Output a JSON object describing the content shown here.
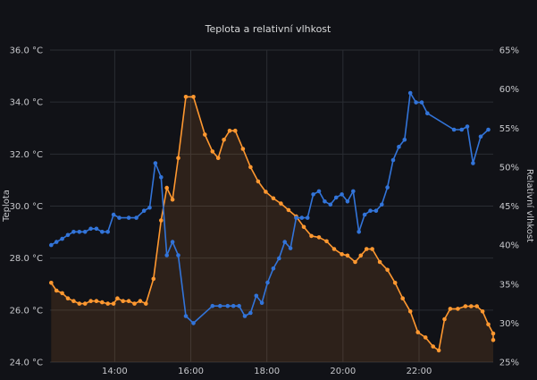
{
  "chart_data": {
    "type": "line",
    "title": "Teplota a relativní vlhkost",
    "x_tick_labels": [
      "14:00",
      "16:00",
      "18:00",
      "20:00",
      "22:00"
    ],
    "x_tick_hours": [
      14,
      16,
      18,
      20,
      22
    ],
    "xlim_hours": [
      12.3,
      23.7
    ],
    "y_left": {
      "label": "Teplota",
      "unit": "°C",
      "ylim": [
        24,
        36
      ],
      "ticks": [
        "24.0 °C",
        "26.0 °C",
        "28.0 °C",
        "30.0 °C",
        "32.0 °C",
        "34.0 °C",
        "36.0 °C"
      ],
      "tick_values": [
        24,
        26,
        28,
        30,
        32,
        34,
        36
      ]
    },
    "y_right": {
      "label": "Relativní vlhkost",
      "unit": "%",
      "ylim": [
        25,
        65
      ],
      "ticks": [
        "25%",
        "30%",
        "35%",
        "40%",
        "45%",
        "50%",
        "55%",
        "60%",
        "65%"
      ],
      "tick_values": [
        25,
        30,
        35,
        40,
        45,
        50,
        55,
        60,
        65
      ]
    },
    "grid": true,
    "series": [
      {
        "axis": "left",
        "color": "#ff9830",
        "fill": true,
        "points": [
          [
            12.33,
            27.05
          ],
          [
            12.47,
            26.75
          ],
          [
            12.62,
            26.65
          ],
          [
            12.77,
            26.45
          ],
          [
            12.92,
            26.35
          ],
          [
            13.07,
            26.25
          ],
          [
            13.22,
            26.25
          ],
          [
            13.37,
            26.35
          ],
          [
            13.52,
            26.35
          ],
          [
            13.67,
            26.3
          ],
          [
            13.82,
            26.25
          ],
          [
            13.97,
            26.25
          ],
          [
            14.07,
            26.45
          ],
          [
            14.22,
            26.35
          ],
          [
            14.37,
            26.35
          ],
          [
            14.52,
            26.25
          ],
          [
            14.67,
            26.35
          ],
          [
            14.82,
            26.25
          ],
          [
            15.02,
            27.2
          ],
          [
            15.22,
            29.45
          ],
          [
            15.37,
            30.7
          ],
          [
            15.52,
            30.25
          ],
          [
            15.67,
            31.85
          ],
          [
            15.87,
            34.2
          ],
          [
            16.07,
            34.2
          ],
          [
            16.37,
            32.75
          ],
          [
            16.57,
            32.1
          ],
          [
            16.72,
            31.85
          ],
          [
            16.87,
            32.55
          ],
          [
            17.02,
            32.9
          ],
          [
            17.17,
            32.9
          ],
          [
            17.37,
            32.2
          ],
          [
            17.57,
            31.5
          ],
          [
            17.77,
            30.95
          ],
          [
            17.97,
            30.55
          ],
          [
            18.17,
            30.3
          ],
          [
            18.37,
            30.1
          ],
          [
            18.57,
            29.85
          ],
          [
            18.77,
            29.6
          ],
          [
            18.97,
            29.2
          ],
          [
            19.17,
            28.85
          ],
          [
            19.37,
            28.8
          ],
          [
            19.57,
            28.65
          ],
          [
            19.77,
            28.35
          ],
          [
            19.97,
            28.15
          ],
          [
            20.12,
            28.1
          ],
          [
            20.32,
            27.85
          ],
          [
            20.47,
            28.1
          ],
          [
            20.62,
            28.35
          ],
          [
            20.77,
            28.35
          ],
          [
            20.97,
            27.85
          ],
          [
            21.17,
            27.55
          ],
          [
            21.37,
            27.05
          ],
          [
            21.57,
            26.45
          ],
          [
            21.77,
            25.95
          ],
          [
            21.97,
            25.15
          ],
          [
            22.17,
            24.95
          ],
          [
            22.37,
            24.6
          ],
          [
            22.52,
            24.45
          ],
          [
            22.67,
            25.65
          ],
          [
            22.82,
            26.05
          ],
          [
            23.02,
            26.05
          ],
          [
            23.22,
            26.15
          ],
          [
            23.37,
            26.15
          ],
          [
            23.52,
            26.15
          ],
          [
            23.67,
            25.95
          ],
          [
            23.82,
            25.45
          ],
          [
            23.97,
            25.1
          ],
          [
            24.07,
            24.85
          ]
        ]
      },
      {
        "axis": "right",
        "color": "#3274d9",
        "fill": false,
        "points": [
          [
            12.33,
            40.0
          ],
          [
            12.47,
            40.4
          ],
          [
            12.62,
            40.8
          ],
          [
            12.77,
            41.3
          ],
          [
            12.92,
            41.7
          ],
          [
            13.07,
            41.7
          ],
          [
            13.22,
            41.7
          ],
          [
            13.37,
            42.1
          ],
          [
            13.52,
            42.1
          ],
          [
            13.67,
            41.7
          ],
          [
            13.82,
            41.7
          ],
          [
            13.97,
            43.9
          ],
          [
            14.12,
            43.5
          ],
          [
            14.37,
            43.5
          ],
          [
            14.57,
            43.5
          ],
          [
            14.77,
            44.4
          ],
          [
            14.92,
            44.8
          ],
          [
            15.07,
            50.5
          ],
          [
            15.22,
            48.7
          ],
          [
            15.37,
            38.7
          ],
          [
            15.52,
            40.4
          ],
          [
            15.67,
            38.7
          ],
          [
            15.87,
            30.9
          ],
          [
            16.07,
            30.0
          ],
          [
            16.57,
            32.2
          ],
          [
            16.77,
            32.2
          ],
          [
            16.97,
            32.2
          ],
          [
            17.12,
            32.2
          ],
          [
            17.27,
            32.2
          ],
          [
            17.42,
            30.9
          ],
          [
            17.57,
            31.3
          ],
          [
            17.72,
            33.5
          ],
          [
            17.87,
            32.6
          ],
          [
            18.02,
            35.2
          ],
          [
            18.17,
            37.0
          ],
          [
            18.32,
            38.3
          ],
          [
            18.47,
            40.4
          ],
          [
            18.62,
            39.6
          ],
          [
            18.77,
            43.5
          ],
          [
            18.92,
            43.5
          ],
          [
            19.07,
            43.5
          ],
          [
            19.22,
            46.5
          ],
          [
            19.37,
            46.9
          ],
          [
            19.52,
            45.6
          ],
          [
            19.67,
            45.2
          ],
          [
            19.82,
            46.1
          ],
          [
            19.97,
            46.5
          ],
          [
            20.12,
            45.6
          ],
          [
            20.27,
            46.9
          ],
          [
            20.42,
            41.7
          ],
          [
            20.57,
            43.9
          ],
          [
            20.72,
            44.4
          ],
          [
            20.87,
            44.4
          ],
          [
            21.02,
            45.2
          ],
          [
            21.17,
            47.4
          ],
          [
            21.32,
            50.9
          ],
          [
            21.47,
            52.6
          ],
          [
            21.62,
            53.5
          ],
          [
            21.77,
            59.5
          ],
          [
            21.92,
            58.3
          ],
          [
            22.07,
            58.3
          ],
          [
            22.22,
            56.9
          ],
          [
            22.92,
            54.8
          ],
          [
            23.12,
            54.8
          ],
          [
            23.27,
            55.2
          ],
          [
            23.42,
            50.5
          ],
          [
            23.62,
            53.9
          ],
          [
            23.82,
            54.8
          ]
        ]
      }
    ]
  }
}
